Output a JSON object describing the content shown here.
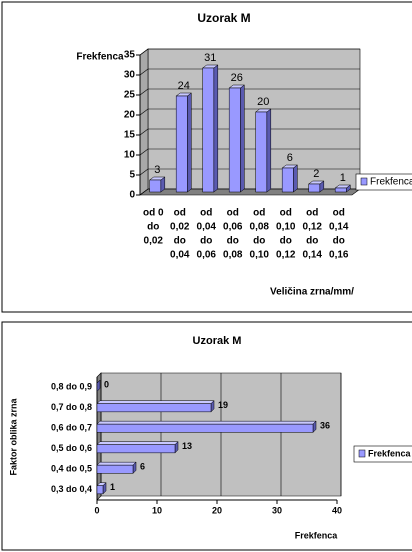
{
  "chart_data": [
    {
      "type": "bar3d",
      "title": "Uzorak M",
      "y_label": "Frekfenca",
      "x_label": "Veličina zrna/mm/",
      "categories": [
        [
          "od 0",
          "do",
          "0,02"
        ],
        [
          "od",
          "0,02",
          "do",
          "0,04"
        ],
        [
          "od",
          "0,04",
          "do",
          "0,06"
        ],
        [
          "od",
          "0,06",
          "do",
          "0,08"
        ],
        [
          "od",
          "0,08",
          "do",
          "0,10"
        ],
        [
          "od",
          "0,10",
          "do",
          "0,12"
        ],
        [
          "od",
          "0,12",
          "do",
          "0,14"
        ],
        [
          "od",
          "0,14",
          "do",
          "0,16"
        ]
      ],
      "series": [
        {
          "name": "Frekfenca",
          "color": "#9999ff",
          "values": [
            3,
            24,
            31,
            26,
            20,
            6,
            2,
            1
          ]
        }
      ],
      "ylim": [
        0,
        35
      ],
      "yticks": [
        0,
        5,
        10,
        15,
        20,
        25,
        30,
        35
      ],
      "grid": true,
      "legend": "right"
    },
    {
      "type": "hbar3d",
      "title": "Uzorak M",
      "y_label": "Faktor oblika zrna",
      "x_label": "Frekfenca",
      "categories": [
        "0,3 do 0,4",
        "0,4 do 0,5",
        "0,5 do 0,6",
        "0,6 do 0,7",
        "0,7 do 0,8",
        "0,8 do 0,9"
      ],
      "series": [
        {
          "name": "Frekfenca",
          "color": "#9999ff",
          "values": [
            1,
            6,
            13,
            36,
            19,
            0
          ]
        }
      ],
      "xlim": [
        0,
        40
      ],
      "xticks": [
        0,
        10,
        20,
        30,
        40
      ],
      "grid": true,
      "legend": "right"
    }
  ]
}
